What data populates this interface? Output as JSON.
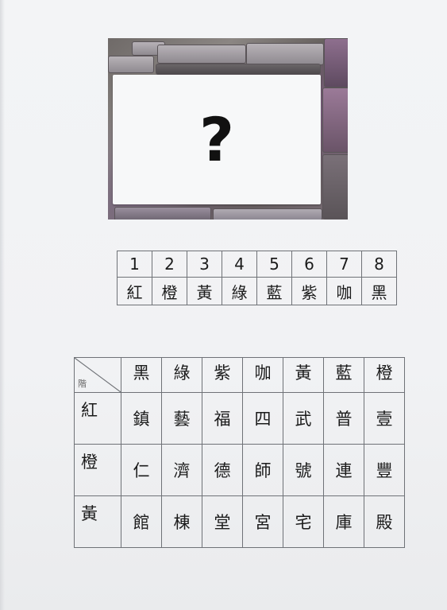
{
  "photo": {
    "placard_symbol": "?"
  },
  "legend": {
    "numbers": [
      "1",
      "2",
      "3",
      "4",
      "5",
      "6",
      "7",
      "8"
    ],
    "colors": [
      "紅",
      "橙",
      "黃",
      "綠",
      "藍",
      "紫",
      "咖",
      "黑"
    ]
  },
  "grid": {
    "corner_label": "階",
    "column_headers": [
      "黑",
      "綠",
      "紫",
      "咖",
      "黃",
      "藍",
      "橙"
    ],
    "rows": [
      {
        "label": "紅",
        "cells": [
          "鎮",
          "藝",
          "福",
          "四",
          "武",
          "普",
          "壹"
        ]
      },
      {
        "label": "橙",
        "cells": [
          "仁",
          "濟",
          "德",
          "師",
          "號",
          "連",
          "豐"
        ]
      },
      {
        "label": "黃",
        "cells": [
          "館",
          "棟",
          "堂",
          "宮",
          "宅",
          "庫",
          "殿"
        ]
      }
    ]
  }
}
